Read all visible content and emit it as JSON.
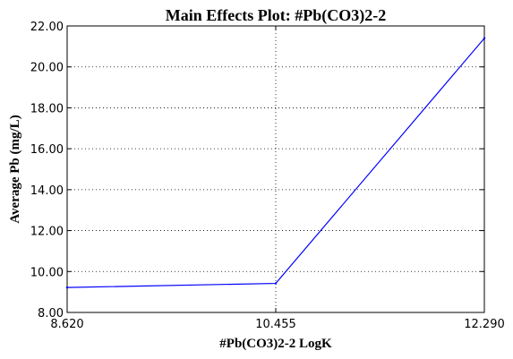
{
  "chart_data": {
    "type": "line",
    "title": "Main Effects Plot: #Pb(CO3)2-2",
    "xlabel": "#Pb(CO3)2-2 LogK",
    "ylabel": "Average Pb (mg/L)",
    "x": [
      8.62,
      10.455,
      12.29
    ],
    "x_tick_labels": [
      "8.620",
      "10.455",
      "12.290"
    ],
    "ylim": [
      8.0,
      22.0
    ],
    "y_tick_labels": [
      "8.00",
      "10.00",
      "12.00",
      "14.00",
      "16.00",
      "18.00",
      "20.00",
      "22.00"
    ],
    "series": [
      {
        "values": [
          9.22,
          9.42,
          21.4
        ],
        "color": "#0000ff"
      }
    ],
    "grid": true,
    "legend": "none"
  }
}
